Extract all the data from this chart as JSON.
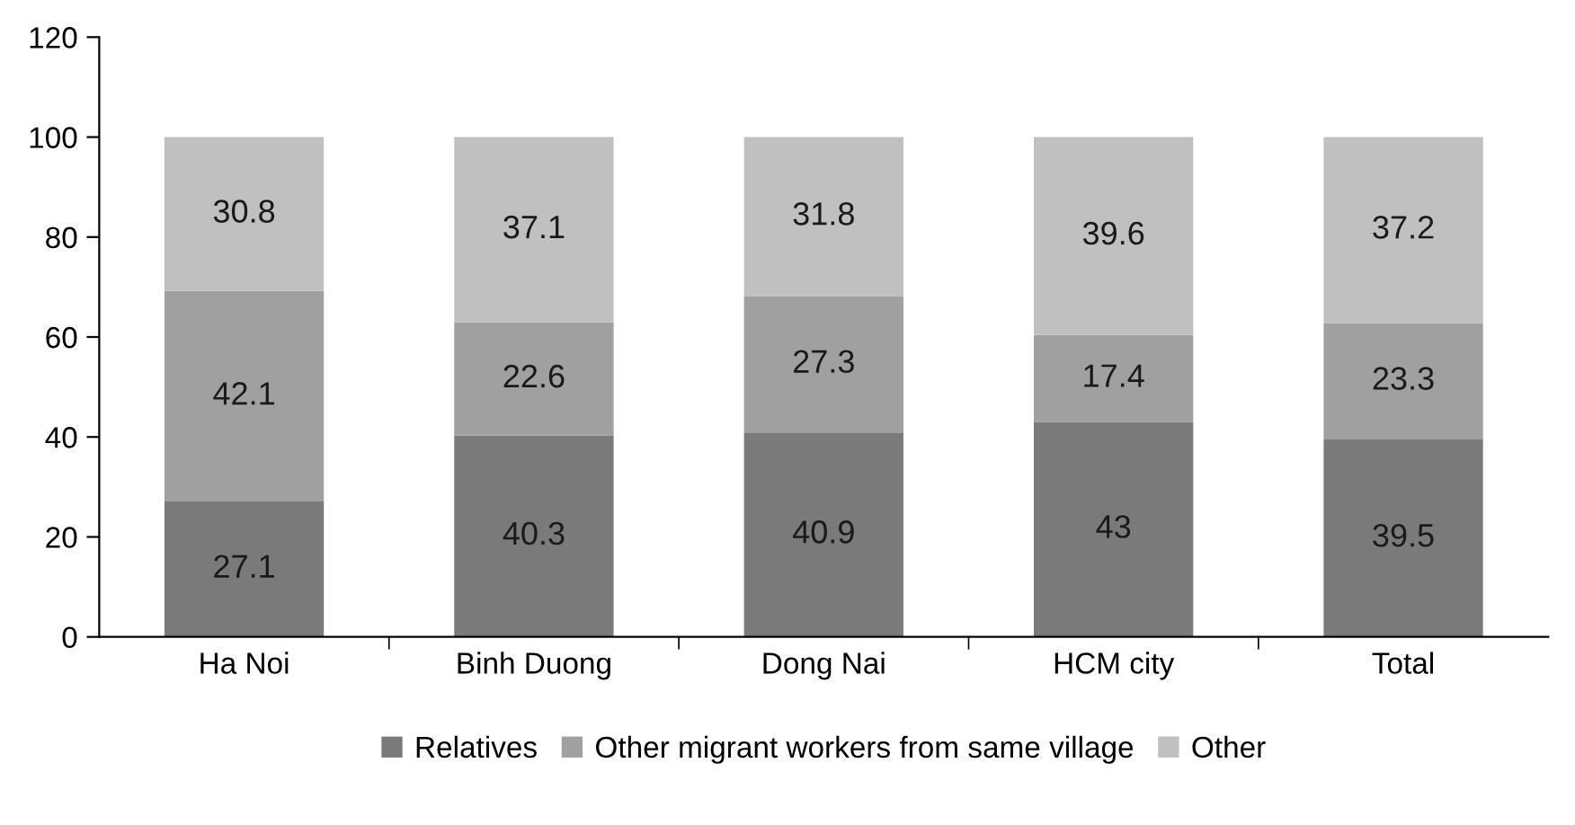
{
  "chart_data": {
    "type": "bar",
    "stacked": true,
    "categories": [
      "Ha Noi",
      "Binh Duong",
      "Dong Nai",
      "HCM city",
      "Total"
    ],
    "series": [
      {
        "name": "Relatives",
        "color": "#7a7a7a",
        "values": [
          27.1,
          40.3,
          40.9,
          43,
          39.5
        ]
      },
      {
        "name": "Other migrant workers from same village",
        "color": "#a0a0a0",
        "values": [
          42.1,
          22.6,
          27.3,
          17.4,
          23.3
        ]
      },
      {
        "name": "Other",
        "color": "#c0c0c0",
        "values": [
          30.8,
          37.1,
          31.8,
          39.6,
          37.2
        ]
      }
    ],
    "ylim": [
      0,
      120
    ],
    "yticks": [
      0,
      20,
      40,
      60,
      80,
      100,
      120
    ],
    "data_labels": true,
    "grid": false,
    "legend": "bottom"
  }
}
